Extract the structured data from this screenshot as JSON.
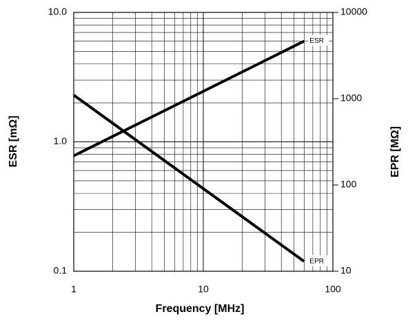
{
  "chart_data": {
    "type": "line",
    "x_label": "Frequency [MHz]",
    "y_label": "ESR [mΩ]",
    "y2_label": "EPR [MΩ]",
    "x_log": true,
    "y_log": true,
    "y2_log": true,
    "grid": true,
    "xlim": [
      1,
      100
    ],
    "xticks": [
      1,
      10,
      100
    ],
    "ylim": [
      0.1,
      10
    ],
    "yticks": [
      {
        "value": 0.1,
        "label": "0.1"
      },
      {
        "value": 1,
        "label": "1.0"
      },
      {
        "value": 10,
        "label": "10.0"
      }
    ],
    "y2lim": [
      10,
      10000
    ],
    "y2ticks": [
      10,
      100,
      1000,
      10000
    ],
    "series": [
      {
        "name": "ESR",
        "color": "#000000",
        "x": [
          1,
          60
        ],
        "values": [
          0.78,
          6.0
        ]
      },
      {
        "name": "EPR",
        "color": "#000000",
        "axis": "y2",
        "x": [
          1,
          60
        ],
        "values": [
          1100,
          13
        ]
      }
    ]
  }
}
